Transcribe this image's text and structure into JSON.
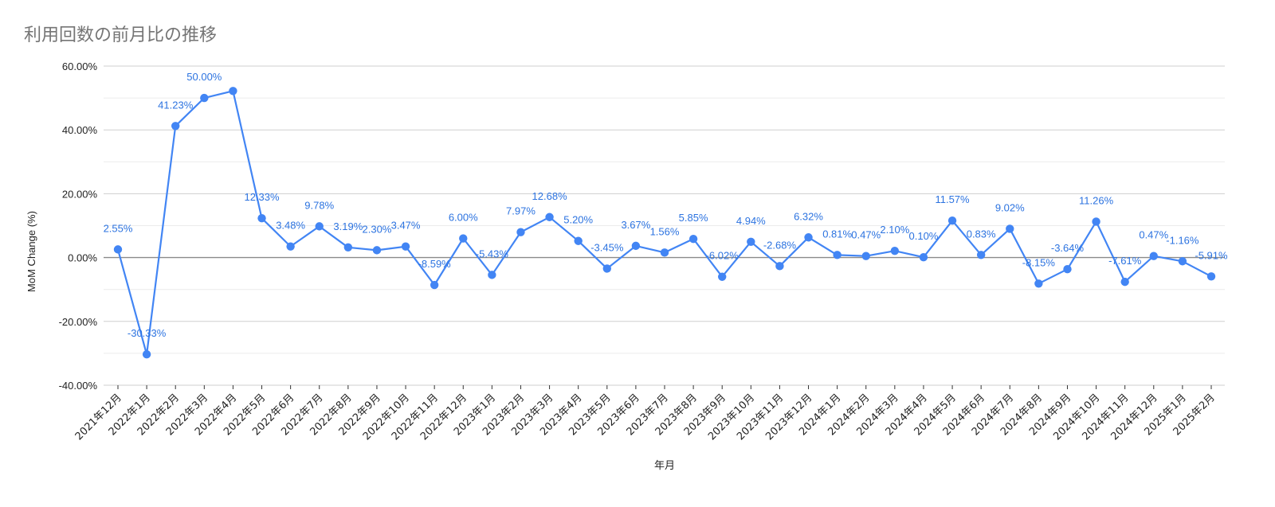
{
  "chart_data": {
    "type": "line",
    "title": "利用回数の前月比の推移",
    "xlabel": "年月",
    "ylabel": "MoM Change (%)",
    "ylim": [
      -40,
      60
    ],
    "yticks": [
      "60.00%",
      "40.00%",
      "20.00%",
      "0.00%",
      "-20.00%",
      "-40.00%"
    ],
    "grid": true,
    "legend": "none",
    "line_color": "#4285f4",
    "label_color": "#2c73e0",
    "categories": [
      "2021年12月",
      "2022年1月",
      "2022年2月",
      "2022年3月",
      "2022年4月",
      "2022年5月",
      "2022年6月",
      "2022年7月",
      "2022年8月",
      "2022年9月",
      "2022年10月",
      "2022年11月",
      "2022年12月",
      "2023年1月",
      "2023年2月",
      "2023年3月",
      "2023年4月",
      "2023年5月",
      "2023年6月",
      "2023年7月",
      "2023年8月",
      "2023年9月",
      "2023年10月",
      "2023年11月",
      "2023年12月",
      "2024年1月",
      "2024年2月",
      "2024年3月",
      "2024年4月",
      "2024年5月",
      "2024年6月",
      "2024年7月",
      "2024年8月",
      "2024年9月",
      "2024年10月",
      "2024年11月",
      "2024年12月",
      "2025年1月",
      "2025年2月"
    ],
    "values": [
      2.55,
      -30.33,
      41.23,
      50.0,
      52.2,
      12.33,
      3.48,
      9.78,
      3.19,
      2.3,
      3.47,
      -8.59,
      6.0,
      -5.43,
      7.97,
      12.68,
      5.2,
      -3.45,
      3.67,
      1.56,
      5.85,
      -6.02,
      4.94,
      -2.68,
      6.32,
      0.81,
      0.47,
      2.1,
      0.1,
      11.57,
      0.83,
      9.02,
      -8.15,
      -3.64,
      11.26,
      -7.61,
      0.47,
      -1.16,
      -5.91
    ],
    "labels": [
      "2.55%",
      "-30.33%",
      "41.23%",
      "50.00%",
      "",
      "12.33%",
      "3.48%",
      "9.78%",
      "3.19%",
      "2.30%",
      "3.47%",
      "-8.59%",
      "6.00%",
      "-5.43%",
      "7.97%",
      "12.68%",
      "5.20%",
      "-3.45%",
      "3.67%",
      "1.56%",
      "5.85%",
      "-6.02%",
      "4.94%",
      "-2.68%",
      "6.32%",
      "0.81%",
      "0.47%",
      "2.10%",
      "0.10%",
      "11.57%",
      "0.83%",
      "9.02%",
      "-8.15%",
      "-3.64%",
      "11.26%",
      "-7.61%",
      "0.47%",
      "-1.16%",
      "-5.91%"
    ]
  }
}
